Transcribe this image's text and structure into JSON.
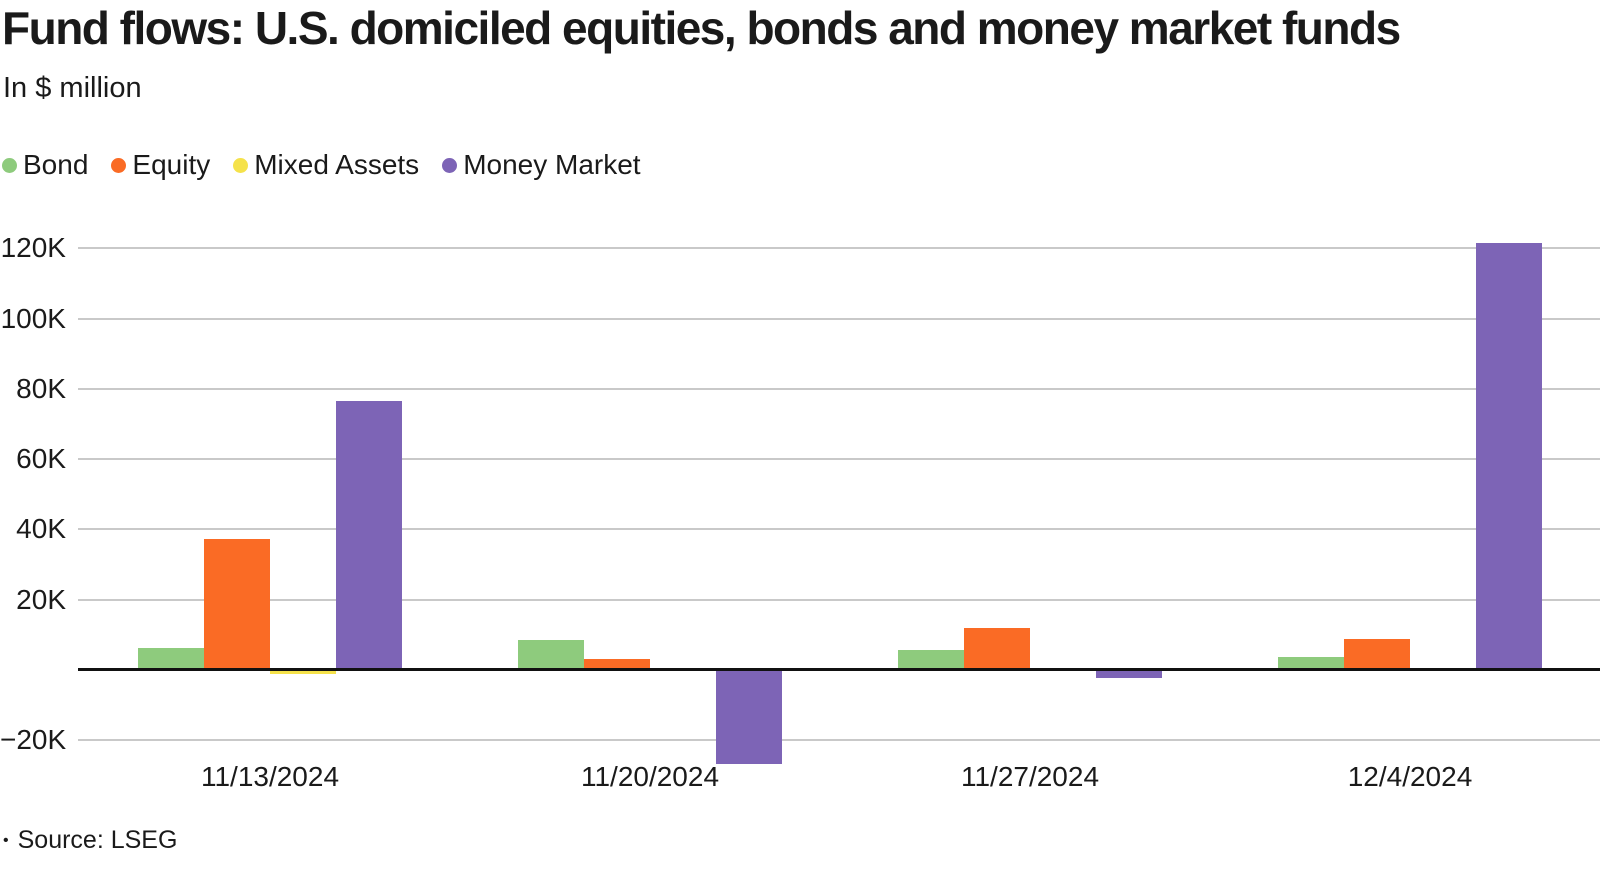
{
  "title": "Fund flows: U.S. domiciled equities, bonds and money market funds",
  "subtitle": "In $ million",
  "legend": [
    {
      "label": "Bond",
      "color": "#8ecb7d"
    },
    {
      "label": "Equity",
      "color": "#fa6b25"
    },
    {
      "label": "Mixed Assets",
      "color": "#f5e24b"
    },
    {
      "label": "Money Market",
      "color": "#7d64b6"
    }
  ],
  "source": {
    "bullet": "•",
    "text": "Source: LSEG"
  },
  "chart_data": {
    "type": "bar",
    "title": "Fund flows: U.S. domiciled equities, bonds and money market funds",
    "subtitle": "In $ million",
    "categories": [
      "11/13/2024",
      "11/20/2024",
      "11/27/2024",
      "12/4/2024"
    ],
    "series": [
      {
        "name": "Bond",
        "color": "#8ecb7d",
        "values": [
          6200,
          8500,
          5700,
          3800
        ]
      },
      {
        "name": "Equity",
        "color": "#fa6b25",
        "values": [
          37400,
          3100,
          11900,
          8800
        ]
      },
      {
        "name": "Mixed Assets",
        "color": "#f5e24b",
        "values": [
          -800,
          0,
          0,
          0
        ]
      },
      {
        "name": "Money Market",
        "color": "#7d64b6",
        "values": [
          76600,
          -26500,
          -1900,
          121600
        ]
      }
    ],
    "yticks": [
      {
        "value": 120000,
        "label": "120K"
      },
      {
        "value": 100000,
        "label": "100K"
      },
      {
        "value": 80000,
        "label": "80K"
      },
      {
        "value": 60000,
        "label": "60K"
      },
      {
        "value": 40000,
        "label": "40K"
      },
      {
        "value": 20000,
        "label": "20K"
      },
      {
        "value": -20000,
        "label": "−20K"
      }
    ],
    "ylim": [
      -30000,
      130000
    ],
    "xlabel": "",
    "ylabel": "In $ million",
    "grid": true,
    "legend_position": "top-left",
    "baseline": 0
  }
}
